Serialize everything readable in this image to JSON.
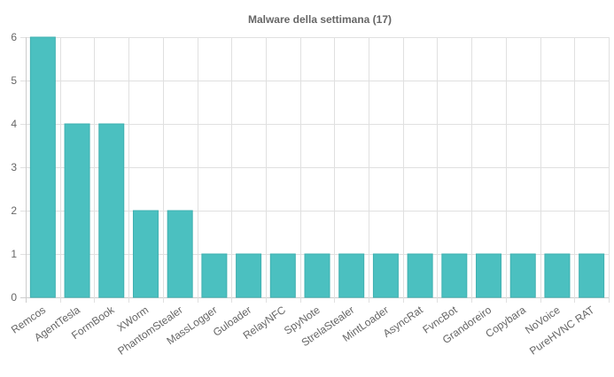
{
  "chart_data": {
    "type": "bar",
    "title": "Malware della settimana (17)",
    "xlabel": "",
    "ylabel": "",
    "ylim": [
      0,
      6
    ],
    "yticks": [
      0,
      1,
      2,
      3,
      4,
      5,
      6
    ],
    "grid": true,
    "categories": [
      "Remcos",
      "AgentTesla",
      "FormBook",
      "XWorm",
      "PhantomStealer",
      "MassLogger",
      "Guloader",
      "RelayNFC",
      "SpyNote",
      "StrelaStealer",
      "MintLoader",
      "AsyncRat",
      "FvncBot",
      "Grandoreiro",
      "Copybara",
      "NoVoice",
      "PureHVNC RAT"
    ],
    "values": [
      6,
      4,
      4,
      2,
      2,
      1,
      1,
      1,
      1,
      1,
      1,
      1,
      1,
      1,
      1,
      1,
      1
    ],
    "colors": {
      "bar": "#4bc0c0",
      "bar_border": "#3fb0b0",
      "grid": "#e0e0e0",
      "text": "#666666"
    }
  }
}
